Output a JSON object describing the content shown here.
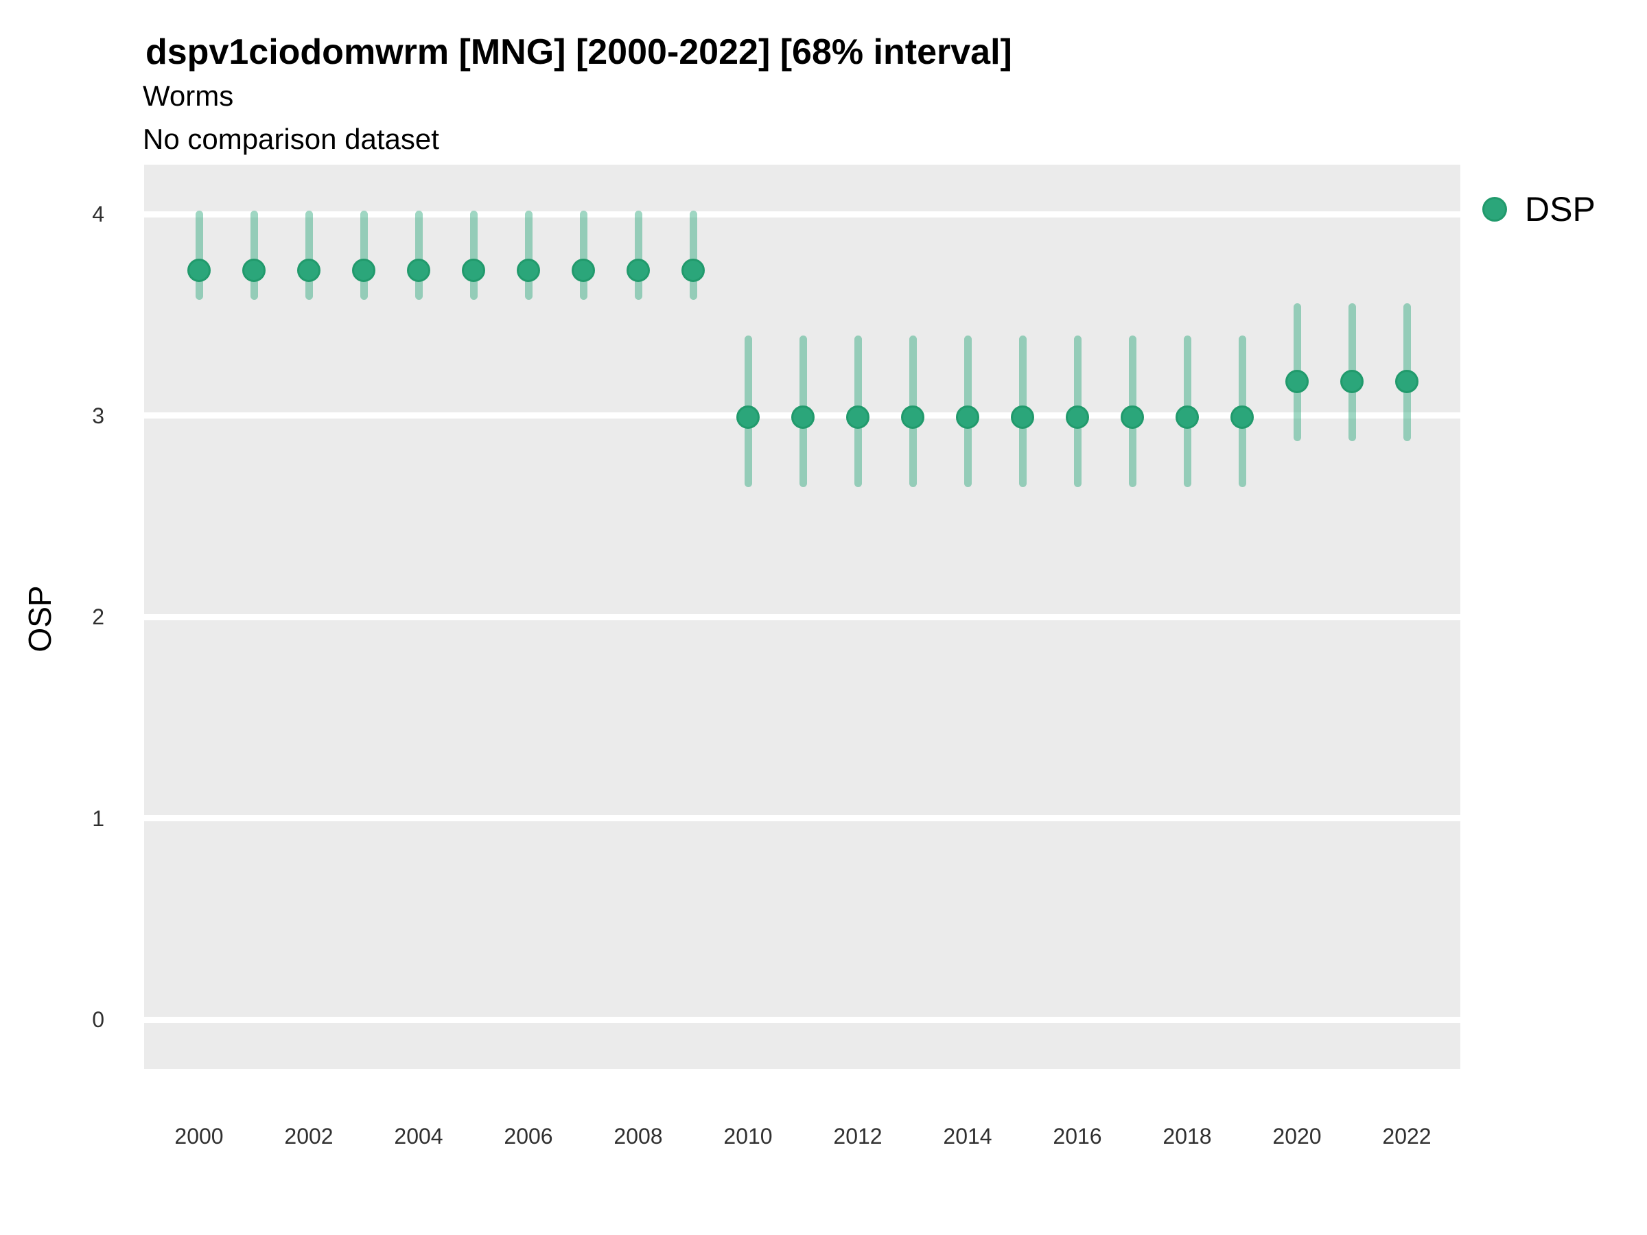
{
  "header": {
    "title": "dspv1ciodomwrm [MNG] [2000-2022] [68% interval]",
    "subtitle": "Worms",
    "note": "No comparison dataset"
  },
  "legend": {
    "position": "right",
    "items": [
      {
        "label": "DSP",
        "color": "#2BA67A"
      }
    ]
  },
  "colors": {
    "panel_bg": "#EBEBEB",
    "gridline": "#FFFFFF",
    "point_fill": "#2BA67A",
    "point_edge": "#219A6C",
    "range_bar": "rgba(43,166,122,0.45)",
    "text": "#000000",
    "tick_text": "#303030"
  },
  "chart_data": {
    "type": "pointrange",
    "title": "dspv1ciodomwrm [MNG] [2000-2022] [68% interval]",
    "subtitle": "Worms",
    "annotation": "No comparison dataset",
    "interval_label": "68% interval",
    "xlabel": "",
    "ylabel": "OSP",
    "legend_position": "right",
    "grid": "horizontal major gridlines only, white on grey panel",
    "xlim": [
      1999,
      2023
    ],
    "ylim": [
      -0.25,
      4.25
    ],
    "xticks": [
      2000,
      2002,
      2004,
      2006,
      2008,
      2010,
      2012,
      2014,
      2016,
      2018,
      2020,
      2022
    ],
    "yticks": [
      0,
      1,
      2,
      3,
      4
    ],
    "series": [
      {
        "name": "DSP",
        "points": [
          {
            "x": 2000,
            "y": 3.72,
            "lo": 3.59,
            "hi": 4.0
          },
          {
            "x": 2001,
            "y": 3.72,
            "lo": 3.59,
            "hi": 4.0
          },
          {
            "x": 2002,
            "y": 3.72,
            "lo": 3.59,
            "hi": 4.0
          },
          {
            "x": 2003,
            "y": 3.72,
            "lo": 3.59,
            "hi": 4.0
          },
          {
            "x": 2004,
            "y": 3.72,
            "lo": 3.59,
            "hi": 4.0
          },
          {
            "x": 2005,
            "y": 3.72,
            "lo": 3.59,
            "hi": 4.0
          },
          {
            "x": 2006,
            "y": 3.72,
            "lo": 3.59,
            "hi": 4.0
          },
          {
            "x": 2007,
            "y": 3.72,
            "lo": 3.59,
            "hi": 4.0
          },
          {
            "x": 2008,
            "y": 3.72,
            "lo": 3.59,
            "hi": 4.0
          },
          {
            "x": 2009,
            "y": 3.72,
            "lo": 3.59,
            "hi": 4.0
          },
          {
            "x": 2010,
            "y": 2.99,
            "lo": 2.66,
            "hi": 3.38
          },
          {
            "x": 2011,
            "y": 2.99,
            "lo": 2.66,
            "hi": 3.38
          },
          {
            "x": 2012,
            "y": 2.99,
            "lo": 2.66,
            "hi": 3.38
          },
          {
            "x": 2013,
            "y": 2.99,
            "lo": 2.66,
            "hi": 3.38
          },
          {
            "x": 2014,
            "y": 2.99,
            "lo": 2.66,
            "hi": 3.38
          },
          {
            "x": 2015,
            "y": 2.99,
            "lo": 2.66,
            "hi": 3.38
          },
          {
            "x": 2016,
            "y": 2.99,
            "lo": 2.66,
            "hi": 3.38
          },
          {
            "x": 2017,
            "y": 2.99,
            "lo": 2.66,
            "hi": 3.38
          },
          {
            "x": 2018,
            "y": 2.99,
            "lo": 2.66,
            "hi": 3.38
          },
          {
            "x": 2019,
            "y": 2.99,
            "lo": 2.66,
            "hi": 3.38
          },
          {
            "x": 2020,
            "y": 3.17,
            "lo": 2.89,
            "hi": 3.54
          },
          {
            "x": 2021,
            "y": 3.17,
            "lo": 2.89,
            "hi": 3.54
          },
          {
            "x": 2022,
            "y": 3.17,
            "lo": 2.89,
            "hi": 3.54
          }
        ]
      }
    ]
  }
}
